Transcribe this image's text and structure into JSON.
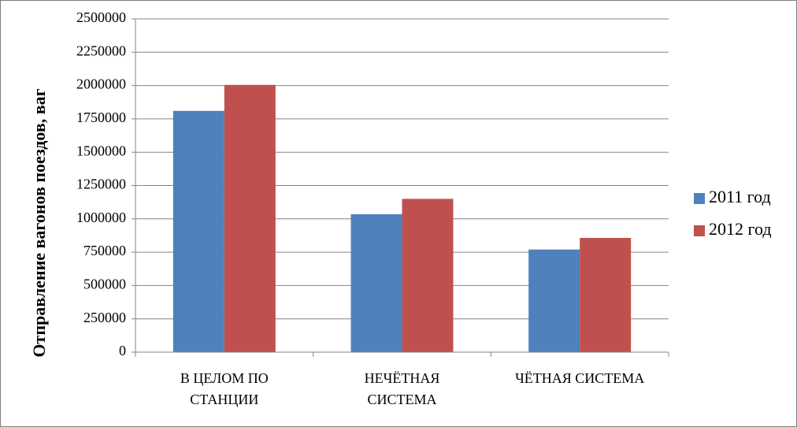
{
  "chart_data": {
    "type": "bar",
    "categories": [
      [
        "В ЦЕЛОМ ПО",
        "СТАНЦИИ"
      ],
      [
        "НЕЧЁТНАЯ",
        "СИСТЕМА"
      ],
      [
        "ЧЁТНАЯ СИСТЕМА"
      ]
    ],
    "series": [
      {
        "name": "2011 год",
        "color": "#4f81bd",
        "values": [
          1810000,
          1035000,
          770000
        ]
      },
      {
        "name": "2012 год",
        "color": "#c0504d",
        "values": [
          2005000,
          1150000,
          857000
        ]
      }
    ],
    "ylabel": "Отправление  вагонов  поездов,  ваг",
    "ylim": [
      0,
      2500000
    ],
    "yticks": [
      0,
      250000,
      500000,
      750000,
      1000000,
      1250000,
      1500000,
      1750000,
      2000000,
      2250000,
      2500000
    ],
    "grid": true,
    "legend": "right"
  }
}
